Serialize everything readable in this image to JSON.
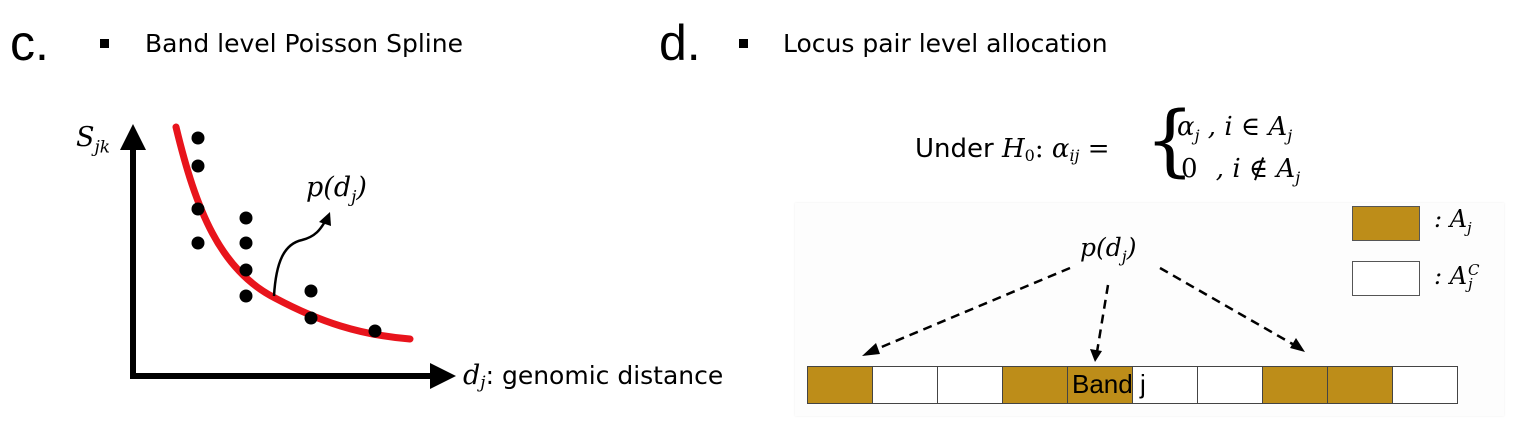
{
  "panel_c": {
    "letter": "c.",
    "heading": "Band level Poisson Spline",
    "y_label_main": "S",
    "y_label_sub": "jk",
    "x_label_var": "d",
    "x_label_sub": "j",
    "x_label_text": ": genomic distance",
    "curve_label": "p(d",
    "curve_label_sub": "j",
    "curve_label_end": ")",
    "curve_color": "#e8141c",
    "point_color": "#000000"
  },
  "panel_d": {
    "letter": "d.",
    "heading": "Locus pair level allocation",
    "equation": {
      "prefix": "Under ",
      "h": "H",
      "h_sub": "0",
      "colon": ": ",
      "alpha": "α",
      "alpha_sub": "ij",
      "equals": " = ",
      "case1_value": "α",
      "case1_sub": "j",
      "case1_cond": " ,  i ∈ A",
      "case1_cond_sub": "j",
      "case2_value": "0",
      "case2_cond": " ,  i ∉ A",
      "case2_cond_sub": "j"
    },
    "source_label": "p(d",
    "source_label_sub": "j",
    "source_label_end": ")",
    "legend": [
      {
        "label": ": A",
        "sub": "j",
        "sup": "",
        "color": "#bd8d19"
      },
      {
        "label": ": A",
        "sub": "j",
        "sup": "C",
        "color": "#ffffff"
      }
    ],
    "band_cells": [
      "brown",
      "white",
      "white",
      "brown",
      "brown",
      "white",
      "white",
      "brown",
      "brown",
      "white"
    ],
    "band_label": "Band j",
    "brown_color": "#bd8d19"
  }
}
